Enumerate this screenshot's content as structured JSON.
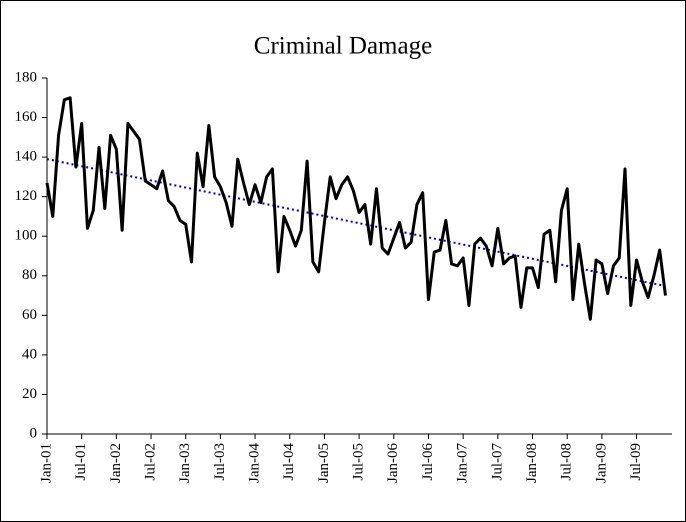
{
  "chart_data": {
    "type": "line",
    "title": "Criminal Damage",
    "categories": [
      "Jan-01",
      null,
      null,
      null,
      null,
      null,
      "Jul-01",
      null,
      null,
      null,
      null,
      null,
      "Jan-02",
      null,
      null,
      null,
      null,
      null,
      "Jul-02",
      null,
      null,
      null,
      null,
      null,
      "Jan-03",
      null,
      null,
      null,
      null,
      null,
      "Jul-03",
      null,
      null,
      null,
      null,
      null,
      "Jan-04",
      null,
      null,
      null,
      null,
      null,
      "Jul-04",
      null,
      null,
      null,
      null,
      null,
      "Jan-05",
      null,
      null,
      null,
      null,
      null,
      "Jul-05",
      null,
      null,
      null,
      null,
      null,
      "Jan-06",
      null,
      null,
      null,
      null,
      null,
      "Jul-06",
      null,
      null,
      null,
      null,
      null,
      "Jan-07",
      null,
      null,
      null,
      null,
      null,
      "Jul-07",
      null,
      null,
      null,
      null,
      null,
      "Jan-08",
      null,
      null,
      null,
      null,
      null,
      "Jul-08",
      null,
      null,
      null,
      null,
      null,
      "Jan-09",
      null,
      null,
      null,
      null,
      null,
      "Jul-09",
      null,
      null,
      null,
      null,
      null
    ],
    "series": [
      {
        "color": "#000000",
        "style": "solid",
        "values": [
          127,
          110,
          151,
          169,
          170,
          135,
          157,
          104,
          113,
          145,
          114,
          151,
          144,
          103,
          157,
          153,
          149,
          128,
          126,
          124,
          133,
          118,
          115,
          108,
          106,
          87,
          142,
          125,
          156,
          130,
          125,
          117,
          105,
          139,
          127,
          116,
          126,
          117,
          130,
          134,
          82,
          110,
          103,
          95,
          103,
          138,
          87,
          82,
          107,
          130,
          119,
          126,
          130,
          123,
          112,
          116,
          96,
          124,
          94,
          91,
          99,
          107,
          94,
          97,
          116,
          122,
          68,
          92,
          93,
          108,
          86,
          85,
          89,
          65,
          96,
          99,
          95,
          85,
          104,
          86,
          89,
          90,
          64,
          84,
          84,
          74,
          101,
          103,
          77,
          113,
          124,
          68,
          96,
          76,
          58,
          88,
          86,
          71,
          85,
          89,
          134,
          65,
          88,
          77,
          69,
          80,
          93,
          70
        ]
      },
      {
        "color": "#0000cc",
        "style": "dotted",
        "values": [
          139,
          138.4,
          137.8,
          137.2,
          136.6,
          136,
          135.4,
          134.8,
          134.2,
          133.6,
          133,
          132.4,
          131.8,
          131.2,
          130.6,
          130,
          129.4,
          128.8,
          128.2,
          127.6,
          127,
          126.4,
          125.8,
          125.2,
          124.6,
          124,
          123.4,
          122.8,
          122.2,
          121.6,
          121,
          120.4,
          119.8,
          119.2,
          118.6,
          118,
          117.4,
          116.8,
          116.2,
          115.6,
          115,
          114.4,
          113.8,
          113.2,
          112.6,
          112,
          111.4,
          110.8,
          110.2,
          109.6,
          109,
          108.4,
          107.8,
          107.2,
          106.6,
          106,
          105.4,
          104.8,
          104.2,
          103.6,
          103,
          102.4,
          101.8,
          101.2,
          100.6,
          100,
          99.4,
          98.8,
          98.2,
          97.6,
          97,
          96.4,
          95.8,
          95.2,
          94.6,
          94,
          93.4,
          92.8,
          92.2,
          91.6,
          91,
          90.4,
          89.8,
          89.2,
          88.6,
          88,
          87.4,
          86.8,
          86.2,
          85.6,
          85,
          84.4,
          83.8,
          83.2,
          82.6,
          82,
          81.4,
          80.8,
          80.2,
          79.6,
          79,
          78.4,
          77.8,
          77.2,
          76.6,
          76,
          75.4,
          74.8
        ]
      }
    ],
    "ylim": [
      0,
      180
    ],
    "yticks": [
      0,
      20,
      40,
      60,
      80,
      100,
      120,
      140,
      160,
      180
    ],
    "grid": false
  }
}
